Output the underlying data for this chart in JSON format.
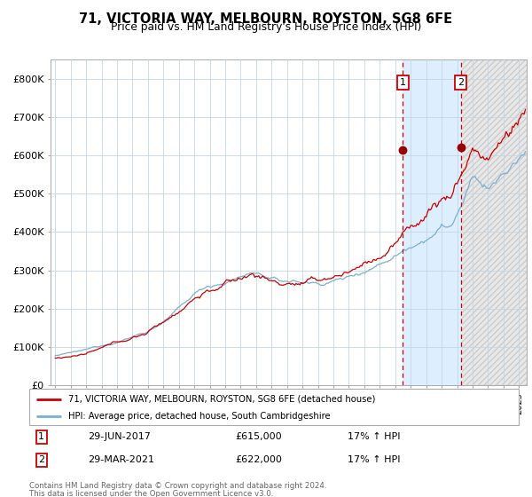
{
  "title1": "71, VICTORIA WAY, MELBOURN, ROYSTON, SG8 6FE",
  "title2": "Price paid vs. HM Land Registry's House Price Index (HPI)",
  "ylim": [
    0,
    850000
  ],
  "yticks": [
    0,
    100000,
    200000,
    300000,
    400000,
    500000,
    600000,
    700000,
    800000
  ],
  "ytick_labels": [
    "£0",
    "£100K",
    "£200K",
    "£300K",
    "£400K",
    "£500K",
    "£600K",
    "£700K",
    "£800K"
  ],
  "xlim_start": 1994.7,
  "xlim_end": 2025.5,
  "sale1_date": 2017.49,
  "sale1_price": 615000,
  "sale1_label": "1",
  "sale2_date": 2021.24,
  "sale2_price": 622000,
  "sale2_label": "2",
  "red_line_color": "#cc0000",
  "blue_line_color": "#7ab0d4",
  "shade_color": "#ddeeff",
  "grid_color": "#c5d5e5",
  "background_color": "#ffffff",
  "legend_label1": "71, VICTORIA WAY, MELBOURN, ROYSTON, SG8 6FE (detached house)",
  "legend_label2": "HPI: Average price, detached house, South Cambridgeshire",
  "annotation1_date": "29-JUN-2017",
  "annotation1_price": "£615,000",
  "annotation1_hpi": "17% ↑ HPI",
  "annotation2_date": "29-MAR-2021",
  "annotation2_price": "£622,000",
  "annotation2_hpi": "17% ↑ HPI",
  "footer": "Contains HM Land Registry data © Crown copyright and database right 2024.\nThis data is licensed under the Open Government Licence v3.0.",
  "hatch_start": 2021.24,
  "dot_color": "#990000"
}
